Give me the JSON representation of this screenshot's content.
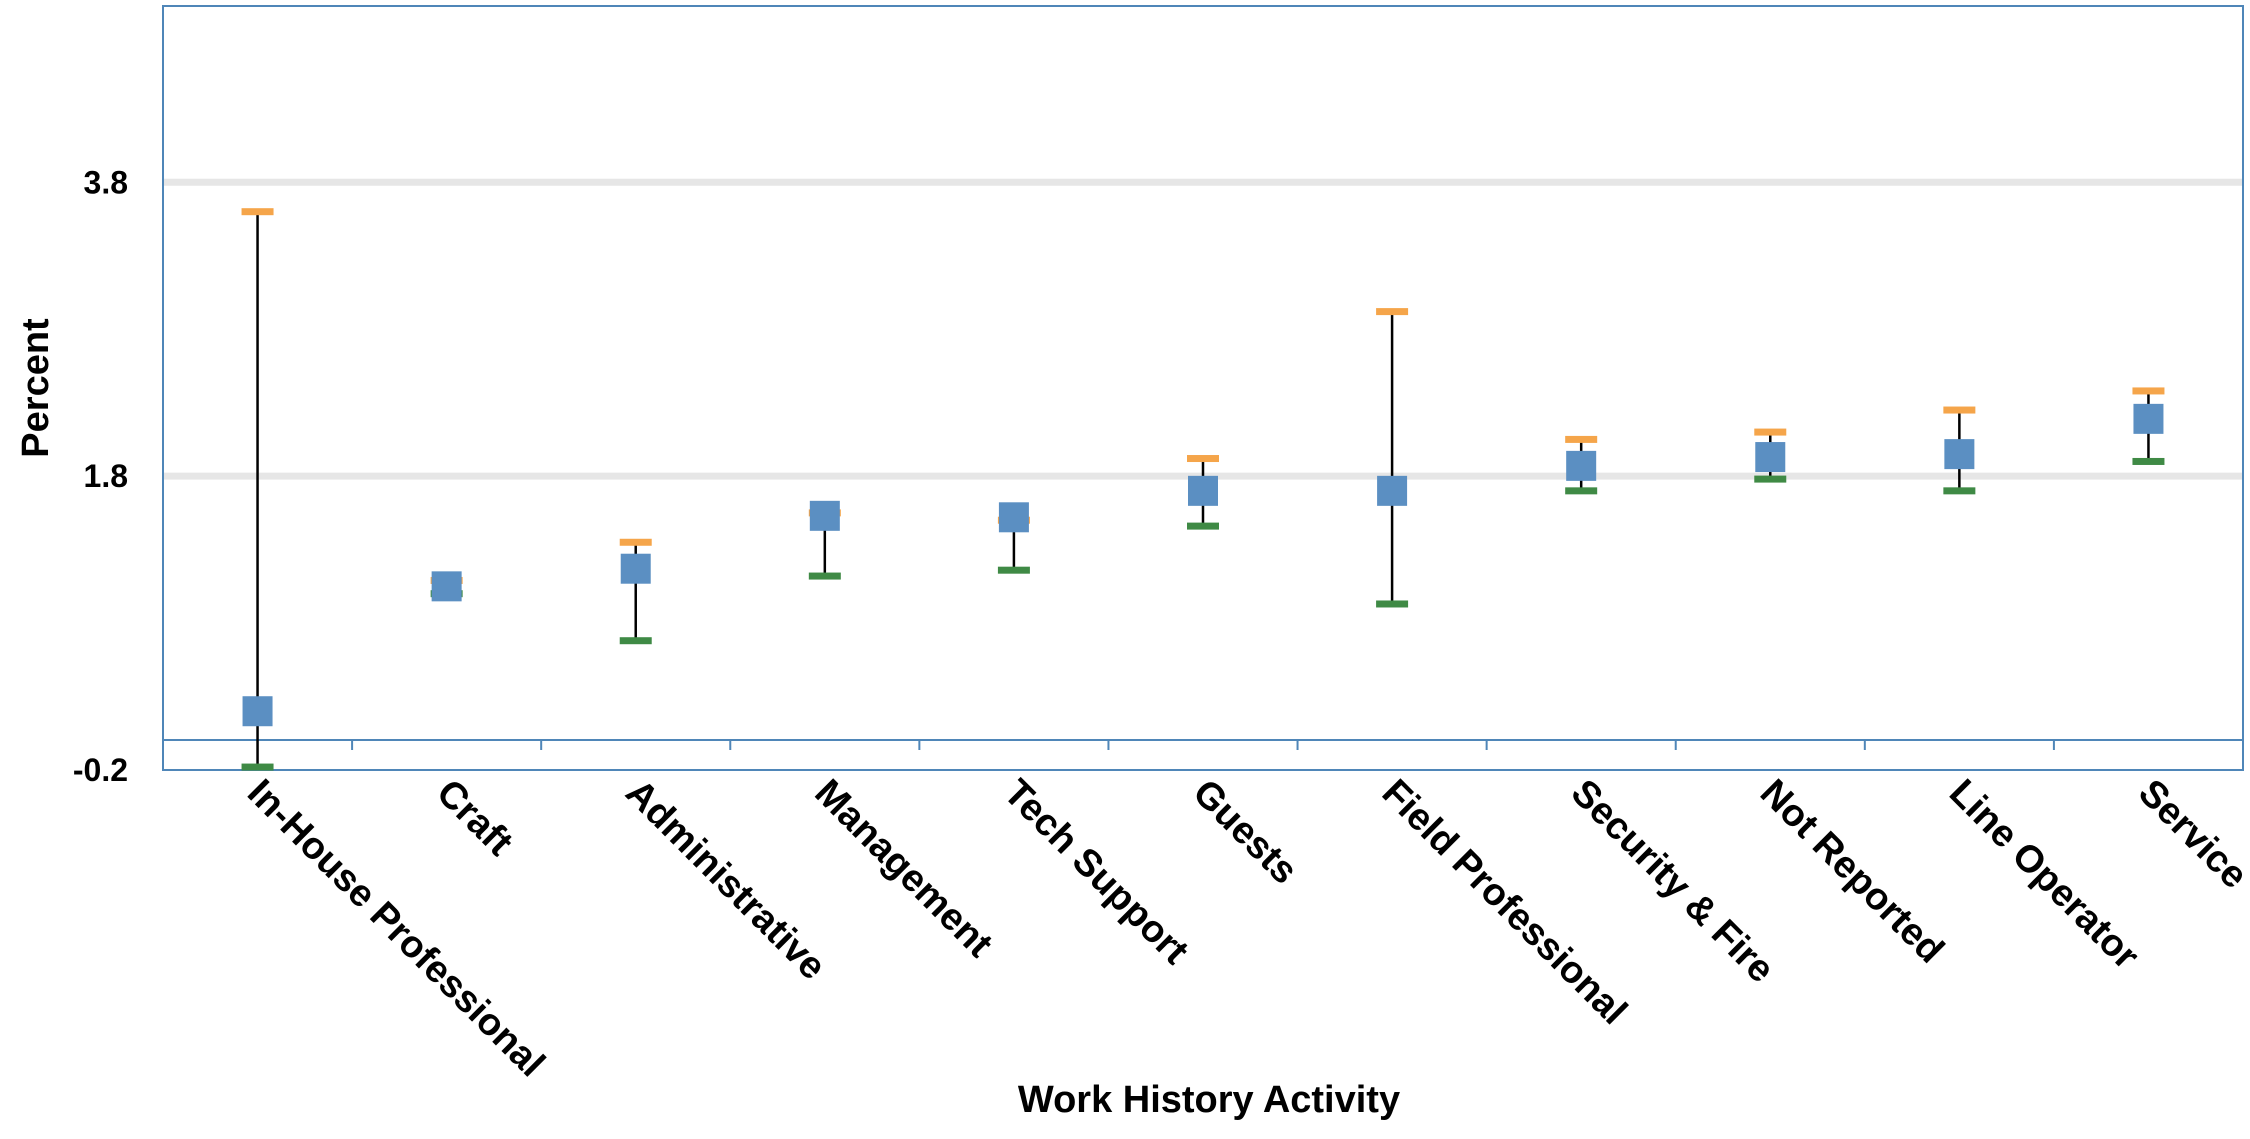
{
  "chart_data": {
    "type": "error-bar",
    "title": "",
    "xlabel": "Work History Activity",
    "ylabel": "Percent",
    "categories": [
      "In-House Professional",
      "Craft",
      "Administrative",
      "Management",
      "Tech Support",
      "Guests",
      "Field Professional",
      "Security & Fire",
      "Not Reported",
      "Line Operator",
      "Service"
    ],
    "series": [
      {
        "name": "",
        "values": [
          0.2,
          1.05,
          1.17,
          1.53,
          1.52,
          1.7,
          1.7,
          1.87,
          1.93,
          1.95,
          2.19
        ]
      }
    ],
    "upper": [
      3.6,
      1.09,
      1.35,
      1.55,
      1.5,
      1.92,
      2.92,
      2.05,
      2.1,
      2.25,
      2.38
    ],
    "lower": [
      -0.18,
      1.0,
      0.68,
      1.12,
      1.16,
      1.46,
      0.93,
      1.7,
      1.78,
      1.7,
      1.9
    ],
    "ylim": [
      -0.2,
      5.0
    ],
    "yticks": [
      -0.2,
      1.8,
      3.8
    ],
    "ytick_labels": [
      "-0.2",
      "1.8",
      "3.8"
    ],
    "grid": true,
    "legend": "none",
    "colors": {
      "point": "#5b8fc2",
      "upper_cap": "#f5a54a",
      "lower_cap": "#3f8a45",
      "whisker": "#000000",
      "gridline": "#e6e6e6",
      "frame": "#4f86b8"
    }
  }
}
